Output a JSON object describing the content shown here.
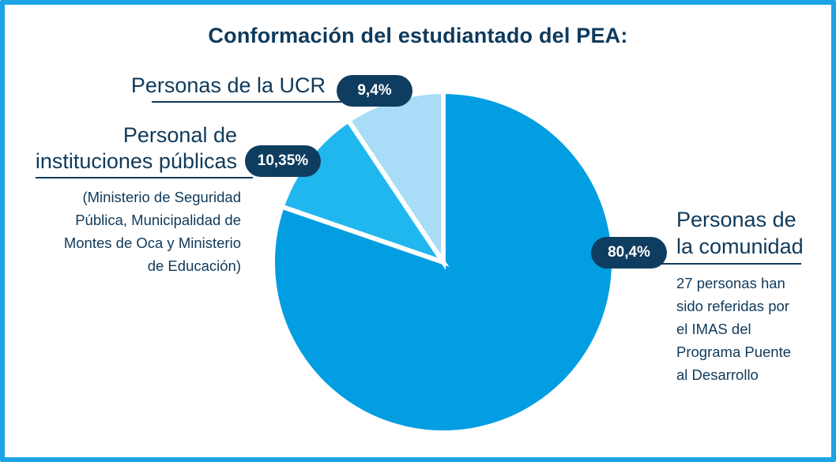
{
  "chart_data": {
    "type": "pie",
    "title": "Conformación del estudiantado del PEA:",
    "slices": [
      {
        "label": "Personas de la comunidad",
        "value": 80.4,
        "value_label": "80,4%",
        "note": [
          "27 personas han",
          "sido referidas por",
          "el  IMAS del",
          "Programa Puente",
          "al Desarrollo"
        ],
        "color": "#039ee2"
      },
      {
        "label": "Personal de instituciones públicas",
        "value": 10.35,
        "value_label": "10,35%",
        "note": [
          "(Ministerio de Seguridad",
          "Pública, Municipalidad de",
          "Montes de Oca y Ministerio",
          "de Educación)"
        ],
        "color": "#20b7ef"
      },
      {
        "label": "Personas de la UCR",
        "value": 9.4,
        "value_label": "9,4%",
        "note": [],
        "color": "#a9dcf6"
      }
    ]
  },
  "labels": {
    "ucr": "Personas de la UCR",
    "inst_line1": "Personal de",
    "inst_line2": "instituciones públicas",
    "com_line1": "Personas de",
    "com_line2": "la comunidad"
  },
  "colors": {
    "border": "#1aa4e6",
    "title": "#0e3a5c",
    "pill": "#0f3d5f"
  }
}
